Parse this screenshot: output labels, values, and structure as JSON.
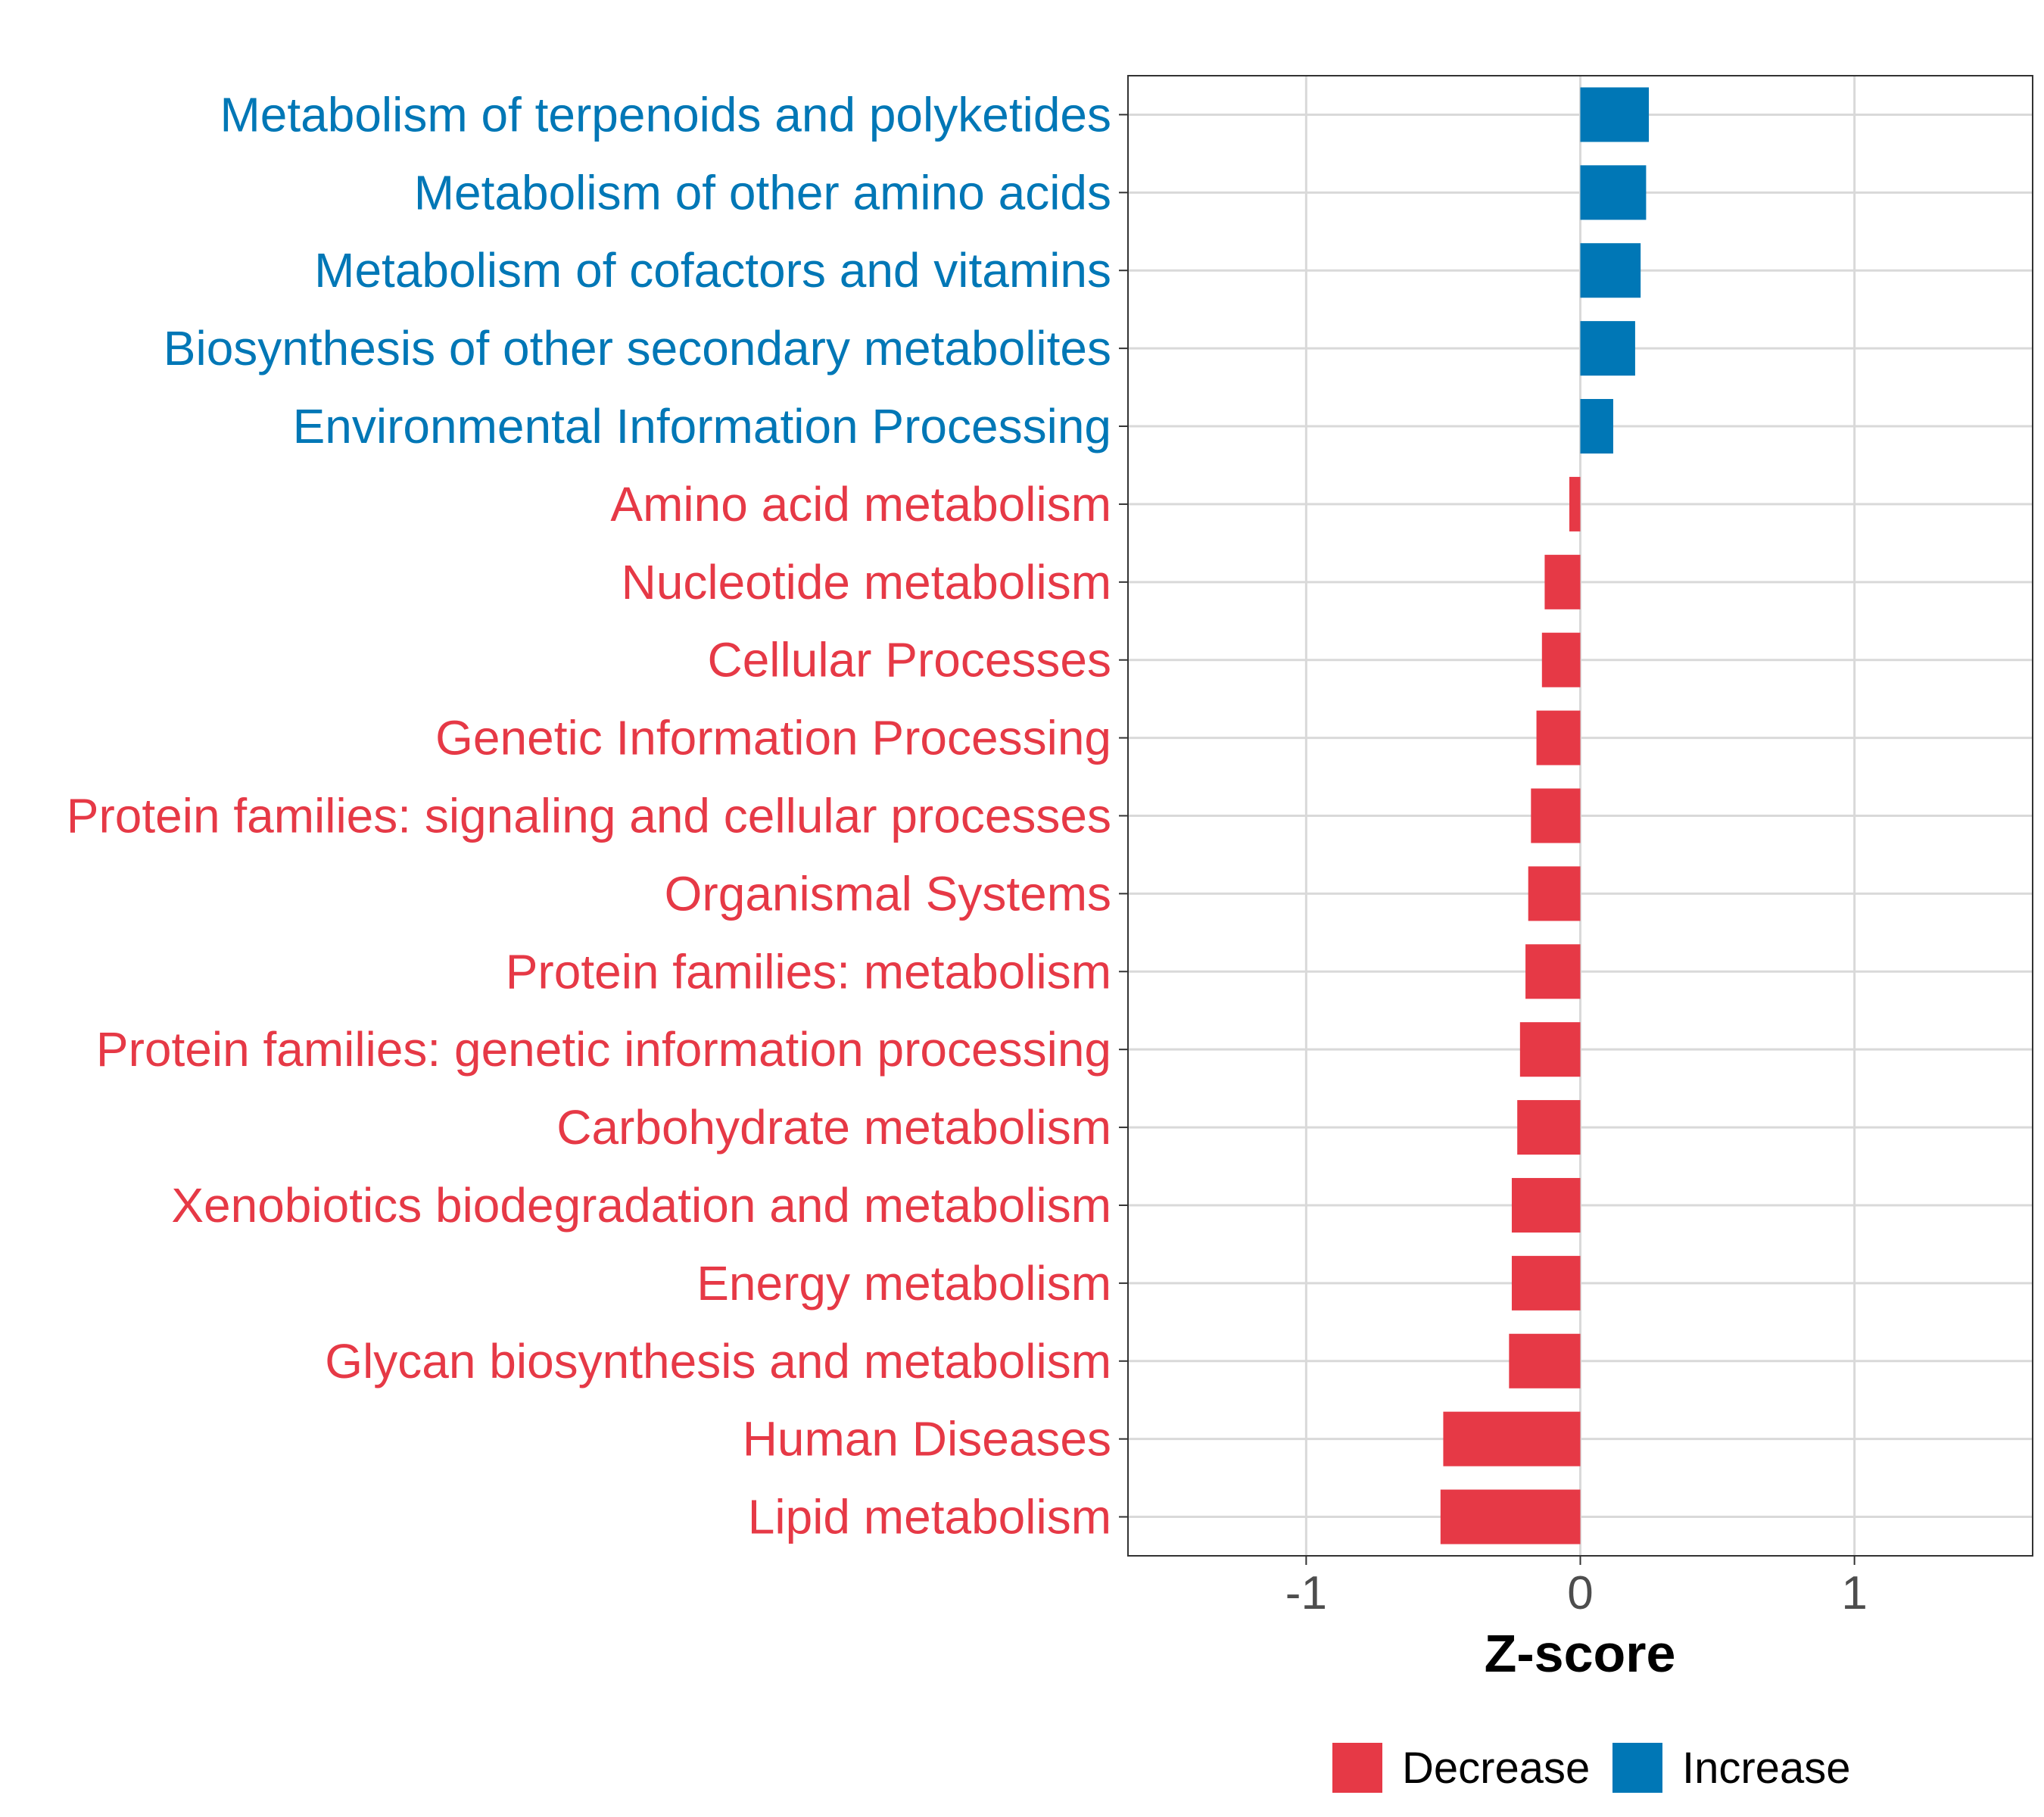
{
  "chart_data": {
    "type": "bar",
    "orientation": "horizontal",
    "xlabel": "Z-score",
    "xlim": [
      -1.65,
      1.65
    ],
    "xticks": [
      -1,
      0,
      1
    ],
    "xtick_labels": [
      "-1",
      "0",
      "1"
    ],
    "grid": true,
    "categories": [
      "Metabolism of terpenoids and polyketides",
      "Metabolism of other amino acids",
      "Metabolism of cofactors and vitamins",
      "Biosynthesis of other secondary metabolites",
      "Environmental Information Processing",
      "Amino acid metabolism",
      "Nucleotide metabolism",
      "Cellular Processes",
      "Genetic Information Processing",
      "Protein families: signaling and cellular processes",
      "Organismal Systems",
      "Protein families: metabolism",
      "Protein families: genetic information processing",
      "Carbohydrate metabolism",
      "Xenobiotics biodegradation and metabolism",
      "Energy metabolism",
      "Glycan biosynthesis and metabolism",
      "Human Diseases",
      "Lipid metabolism"
    ],
    "values": [
      0.25,
      0.24,
      0.22,
      0.2,
      0.12,
      -0.04,
      -0.13,
      -0.14,
      -0.16,
      -0.18,
      -0.19,
      -0.2,
      -0.22,
      -0.23,
      -0.25,
      -0.25,
      -0.26,
      -0.5,
      -0.51
    ],
    "groups": [
      "Increase",
      "Increase",
      "Increase",
      "Increase",
      "Increase",
      "Decrease",
      "Decrease",
      "Decrease",
      "Decrease",
      "Decrease",
      "Decrease",
      "Decrease",
      "Decrease",
      "Decrease",
      "Decrease",
      "Decrease",
      "Decrease",
      "Decrease",
      "Decrease"
    ],
    "legend": {
      "position": "bottom",
      "entries": [
        {
          "label": "Decrease",
          "color": "#e63946"
        },
        {
          "label": "Increase",
          "color": "#0077b6"
        }
      ]
    }
  }
}
